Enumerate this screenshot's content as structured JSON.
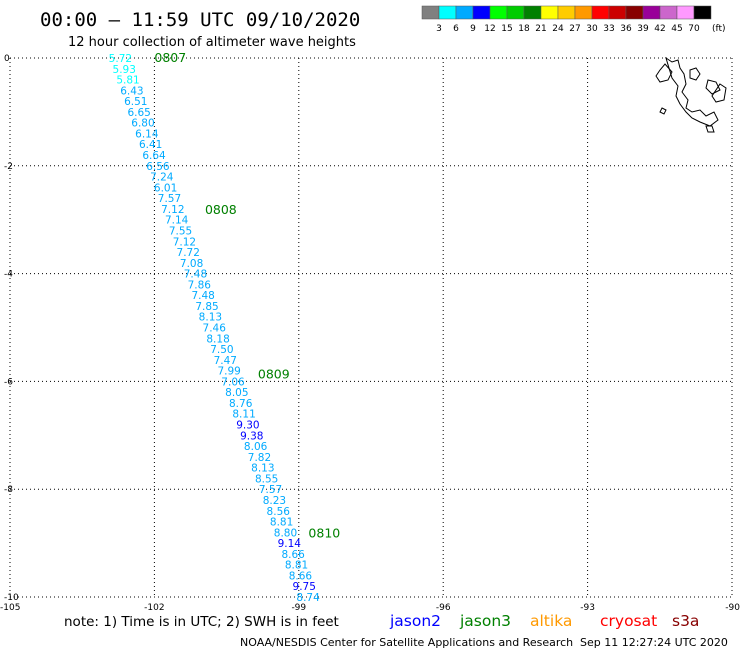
{
  "header": {
    "title": "00:00 – 11:59 UTC 09/10/2020",
    "subtitle": "12 hour collection of altimeter wave heights"
  },
  "legend": {
    "unit": "(ft)",
    "bins": [
      {
        "label": "3",
        "color": "#808080"
      },
      {
        "label": "6",
        "color": "#00ffff"
      },
      {
        "label": "9",
        "color": "#00aaff"
      },
      {
        "label": "12",
        "color": "#0000ff"
      },
      {
        "label": "15",
        "color": "#00ff00"
      },
      {
        "label": "18",
        "color": "#00cc00"
      },
      {
        "label": "21",
        "color": "#008000"
      },
      {
        "label": "24",
        "color": "#ffff00"
      },
      {
        "label": "27",
        "color": "#ffcc00"
      },
      {
        "label": "30",
        "color": "#ff9900"
      },
      {
        "label": "33",
        "color": "#ff0000"
      },
      {
        "label": "36",
        "color": "#cc0000"
      },
      {
        "label": "39",
        "color": "#880000"
      },
      {
        "label": "42",
        "color": "#990099"
      },
      {
        "label": "45",
        "color": "#cc66cc"
      },
      {
        "label": "70",
        "color": "#ff99ff"
      },
      {
        "label": "",
        "color": "#000000"
      }
    ]
  },
  "footer": {
    "note": "note: 1) Time is in UTC; 2) SWH is in feet",
    "missions": [
      {
        "name": "jason2",
        "color": "#0000ff"
      },
      {
        "name": "jason3",
        "color": "#008000"
      },
      {
        "name": "altika",
        "color": "#ff9900"
      },
      {
        "name": "cryosat",
        "color": "#ff0000"
      },
      {
        "name": "s3a",
        "color": "#880000"
      }
    ],
    "credit": "NOAA/NESDIS Center for Satellite Applications and Research",
    "timestamp": "Sep 11 12:27:24 UTC 2020"
  },
  "chart_data": {
    "type": "scatter",
    "xlim": [
      -105,
      -90
    ],
    "ylim": [
      -10,
      0
    ],
    "x_ticks": [
      {
        "value": -105,
        "label": "-105"
      },
      {
        "value": -102,
        "label": "-102"
      },
      {
        "value": -99,
        "label": "-99"
      },
      {
        "value": -96,
        "label": "-96"
      },
      {
        "value": -93,
        "label": "-93"
      },
      {
        "value": -90,
        "label": "-90"
      }
    ],
    "y_ticks": [
      {
        "value": 0,
        "label": "0"
      },
      {
        "value": -2,
        "label": "-2"
      },
      {
        "value": -4,
        "label": "-4"
      },
      {
        "value": -6,
        "label": "-6"
      },
      {
        "value": -8,
        "label": "-8"
      },
      {
        "value": -10,
        "label": "-10"
      }
    ],
    "grid": true,
    "pass_times": [
      {
        "label": "0807",
        "x": -102.0,
        "y": 0.0
      },
      {
        "label": "0808",
        "x": -100.95,
        "y": -2.82
      },
      {
        "label": "0809",
        "x": -99.85,
        "y": -5.87
      },
      {
        "label": "0810",
        "x": -98.8,
        "y": -8.82
      }
    ],
    "samples": [
      {
        "x": -102.95,
        "y": 0.0,
        "swh": "5.72",
        "color": "#00ffff"
      },
      {
        "x": -102.87,
        "y": -0.2,
        "swh": "5.93",
        "color": "#00ffff"
      },
      {
        "x": -102.79,
        "y": -0.4,
        "swh": "5.81",
        "color": "#00ffff"
      },
      {
        "x": -102.71,
        "y": -0.6,
        "swh": "6.43",
        "color": "#00aaff"
      },
      {
        "x": -102.63,
        "y": -0.8,
        "swh": "6.51",
        "color": "#00aaff"
      },
      {
        "x": -102.56,
        "y": -1.0,
        "swh": "6.65",
        "color": "#00aaff"
      },
      {
        "x": -102.48,
        "y": -1.2,
        "swh": "6.80",
        "color": "#00aaff"
      },
      {
        "x": -102.4,
        "y": -1.4,
        "swh": "6.14",
        "color": "#00aaff"
      },
      {
        "x": -102.32,
        "y": -1.6,
        "swh": "6.41",
        "color": "#00aaff"
      },
      {
        "x": -102.25,
        "y": -1.8,
        "swh": "6.64",
        "color": "#00aaff"
      },
      {
        "x": -102.17,
        "y": -2.0,
        "swh": "6.56",
        "color": "#00aaff"
      },
      {
        "x": -102.09,
        "y": -2.2,
        "swh": "7.24",
        "color": "#00aaff"
      },
      {
        "x": -102.01,
        "y": -2.4,
        "swh": "6.01",
        "color": "#00aaff"
      },
      {
        "x": -101.93,
        "y": -2.6,
        "swh": "7.57",
        "color": "#00aaff"
      },
      {
        "x": -101.86,
        "y": -2.8,
        "swh": "7.12",
        "color": "#00aaff"
      },
      {
        "x": -101.78,
        "y": -3.0,
        "swh": "7.14",
        "color": "#00aaff"
      },
      {
        "x": -101.7,
        "y": -3.2,
        "swh": "7.55",
        "color": "#00aaff"
      },
      {
        "x": -101.62,
        "y": -3.4,
        "swh": "7.12",
        "color": "#00aaff"
      },
      {
        "x": -101.54,
        "y": -3.6,
        "swh": "7.72",
        "color": "#00aaff"
      },
      {
        "x": -101.47,
        "y": -3.8,
        "swh": "7.08",
        "color": "#00aaff"
      },
      {
        "x": -101.39,
        "y": -4.0,
        "swh": "7.48",
        "color": "#00aaff"
      },
      {
        "x": -101.31,
        "y": -4.2,
        "swh": "7.86",
        "color": "#00aaff"
      },
      {
        "x": -101.23,
        "y": -4.4,
        "swh": "7.48",
        "color": "#00aaff"
      },
      {
        "x": -101.15,
        "y": -4.6,
        "swh": "7.85",
        "color": "#00aaff"
      },
      {
        "x": -101.08,
        "y": -4.8,
        "swh": "8.13",
        "color": "#00aaff"
      },
      {
        "x": -101.0,
        "y": -5.0,
        "swh": "7.46",
        "color": "#00aaff"
      },
      {
        "x": -100.92,
        "y": -5.2,
        "swh": "8.18",
        "color": "#00aaff"
      },
      {
        "x": -100.84,
        "y": -5.4,
        "swh": "7.50",
        "color": "#00aaff"
      },
      {
        "x": -100.77,
        "y": -5.6,
        "swh": "7.47",
        "color": "#00aaff"
      },
      {
        "x": -100.69,
        "y": -5.8,
        "swh": "7.99",
        "color": "#00aaff"
      },
      {
        "x": -100.61,
        "y": -6.0,
        "swh": "7.06",
        "color": "#00aaff"
      },
      {
        "x": -100.53,
        "y": -6.2,
        "swh": "8.05",
        "color": "#00aaff"
      },
      {
        "x": -100.45,
        "y": -6.4,
        "swh": "8.76",
        "color": "#00aaff"
      },
      {
        "x": -100.38,
        "y": -6.6,
        "swh": "8.11",
        "color": "#00aaff"
      },
      {
        "x": -100.3,
        "y": -6.8,
        "swh": "9.30",
        "color": "#0000ff"
      },
      {
        "x": -100.22,
        "y": -7.0,
        "swh": "9.38",
        "color": "#0000ff"
      },
      {
        "x": -100.14,
        "y": -7.2,
        "swh": "8.06",
        "color": "#00aaff"
      },
      {
        "x": -100.06,
        "y": -7.4,
        "swh": "7.82",
        "color": "#00aaff"
      },
      {
        "x": -99.99,
        "y": -7.6,
        "swh": "8.13",
        "color": "#00aaff"
      },
      {
        "x": -99.91,
        "y": -7.8,
        "swh": "8.55",
        "color": "#00aaff"
      },
      {
        "x": -99.83,
        "y": -8.0,
        "swh": "7.57",
        "color": "#00aaff"
      },
      {
        "x": -99.75,
        "y": -8.2,
        "swh": "8.23",
        "color": "#00aaff"
      },
      {
        "x": -99.67,
        "y": -8.4,
        "swh": "8.56",
        "color": "#00aaff"
      },
      {
        "x": -99.6,
        "y": -8.6,
        "swh": "8.81",
        "color": "#00aaff"
      },
      {
        "x": -99.52,
        "y": -8.8,
        "swh": "8.80",
        "color": "#00aaff"
      },
      {
        "x": -99.44,
        "y": -9.0,
        "swh": "9.14",
        "color": "#0000ff"
      },
      {
        "x": -99.36,
        "y": -9.2,
        "swh": "8.66",
        "color": "#00aaff"
      },
      {
        "x": -99.29,
        "y": -9.4,
        "swh": "8.81",
        "color": "#00aaff"
      },
      {
        "x": -99.21,
        "y": -9.6,
        "swh": "8.66",
        "color": "#00aaff"
      },
      {
        "x": -99.13,
        "y": -9.8,
        "swh": "9.75",
        "color": "#0000ff"
      },
      {
        "x": -99.05,
        "y": -10.0,
        "swh": "8.74",
        "color": "#00aaff"
      }
    ]
  }
}
